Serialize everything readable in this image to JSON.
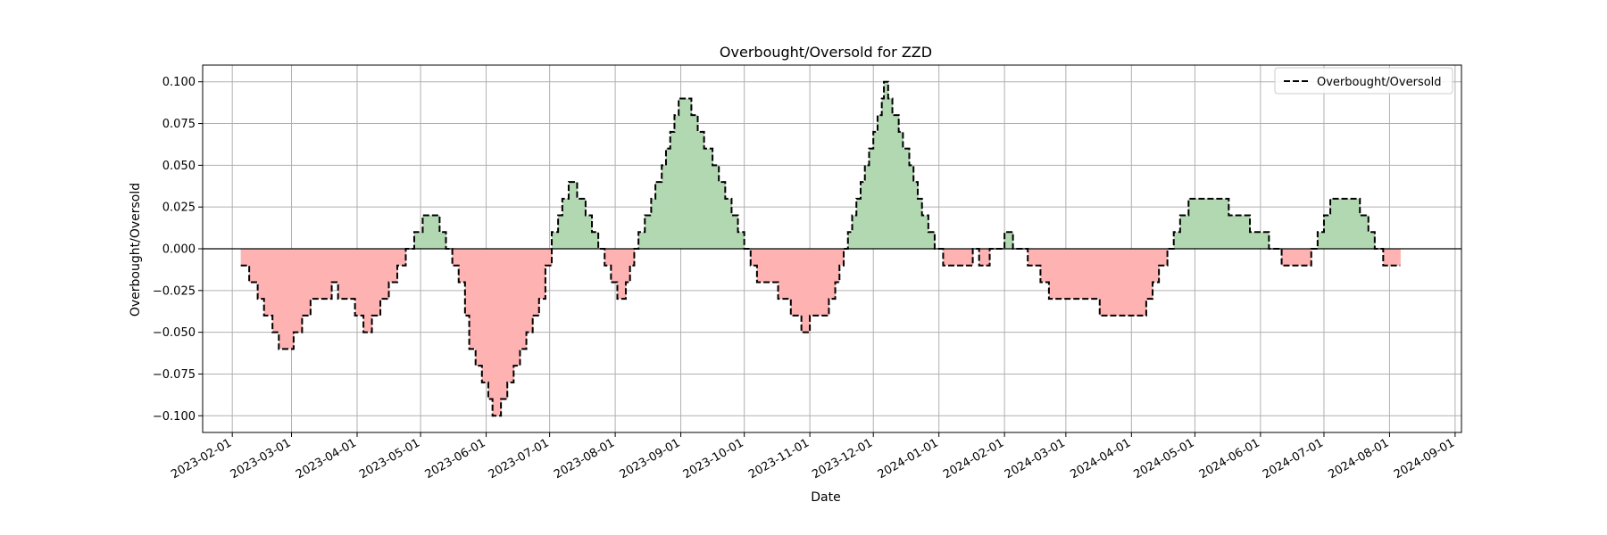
{
  "chart_data": {
    "type": "area",
    "title": "Overbought/Oversold for ZZD",
    "xlabel": "Date",
    "ylabel": "Overbought/Oversold",
    "x_ticks": [
      "2023-02-01",
      "2023-03-01",
      "2023-04-01",
      "2023-05-01",
      "2023-06-01",
      "2023-07-01",
      "2023-08-01",
      "2023-09-01",
      "2023-10-01",
      "2023-11-01",
      "2023-12-01",
      "2024-01-01",
      "2024-02-01",
      "2024-03-01",
      "2024-04-01",
      "2024-05-01",
      "2024-06-01",
      "2024-07-01",
      "2024-08-01",
      "2024-09-01"
    ],
    "y_ticks": [
      "0.100",
      "0.075",
      "0.050",
      "0.025",
      "0.000",
      "−0.025",
      "−0.050",
      "−0.075",
      "−0.100"
    ],
    "y_tick_values": [
      0.1,
      0.075,
      0.05,
      0.025,
      0,
      -0.025,
      -0.05,
      -0.075,
      -0.1
    ],
    "xlim": [
      "2023-01-18",
      "2024-09-04"
    ],
    "ylim": [
      -0.11,
      0.11
    ],
    "grid": true,
    "legend_position": "top-right",
    "colors": {
      "positive_fill": "#b2d8b2",
      "negative_fill": "#ffb2b2",
      "line": "#000000",
      "grid": "#b0b0b0"
    },
    "series": [
      {
        "name": "Overbought/Oversold",
        "style": "dashed",
        "points": [
          [
            "2023-02-05",
            -0.01
          ],
          [
            "2023-02-09",
            -0.02
          ],
          [
            "2023-02-13",
            -0.03
          ],
          [
            "2023-02-16",
            -0.04
          ],
          [
            "2023-02-20",
            -0.05
          ],
          [
            "2023-02-23",
            -0.06
          ],
          [
            "2023-03-02",
            -0.05
          ],
          [
            "2023-03-06",
            -0.04
          ],
          [
            "2023-03-10",
            -0.03
          ],
          [
            "2023-03-20",
            -0.02
          ],
          [
            "2023-03-23",
            -0.03
          ],
          [
            "2023-03-31",
            -0.04
          ],
          [
            "2023-04-04",
            -0.05
          ],
          [
            "2023-04-08",
            -0.04
          ],
          [
            "2023-04-12",
            -0.03
          ],
          [
            "2023-04-16",
            -0.02
          ],
          [
            "2023-04-20",
            -0.01
          ],
          [
            "2023-04-24",
            0.0
          ],
          [
            "2023-04-28",
            0.01
          ],
          [
            "2023-05-02",
            0.02
          ],
          [
            "2023-05-10",
            0.01
          ],
          [
            "2023-05-13",
            0.0
          ],
          [
            "2023-05-16",
            -0.01
          ],
          [
            "2023-05-19",
            -0.02
          ],
          [
            "2023-05-22",
            -0.04
          ],
          [
            "2023-05-24",
            -0.06
          ],
          [
            "2023-05-27",
            -0.07
          ],
          [
            "2023-05-30",
            -0.08
          ],
          [
            "2023-06-02",
            -0.09
          ],
          [
            "2023-06-04",
            -0.1
          ],
          [
            "2023-06-08",
            -0.09
          ],
          [
            "2023-06-11",
            -0.08
          ],
          [
            "2023-06-14",
            -0.07
          ],
          [
            "2023-06-17",
            -0.06
          ],
          [
            "2023-06-20",
            -0.05
          ],
          [
            "2023-06-23",
            -0.04
          ],
          [
            "2023-06-26",
            -0.03
          ],
          [
            "2023-06-29",
            -0.01
          ],
          [
            "2023-07-02",
            0.01
          ],
          [
            "2023-07-05",
            0.02
          ],
          [
            "2023-07-07",
            0.03
          ],
          [
            "2023-07-10",
            0.04
          ],
          [
            "2023-07-14",
            0.03
          ],
          [
            "2023-07-18",
            0.02
          ],
          [
            "2023-07-21",
            0.01
          ],
          [
            "2023-07-24",
            0.0
          ],
          [
            "2023-07-27",
            -0.01
          ],
          [
            "2023-07-30",
            -0.02
          ],
          [
            "2023-08-02",
            -0.03
          ],
          [
            "2023-08-06",
            -0.02
          ],
          [
            "2023-08-08",
            -0.01
          ],
          [
            "2023-08-10",
            0.0
          ],
          [
            "2023-08-12",
            0.01
          ],
          [
            "2023-08-15",
            0.02
          ],
          [
            "2023-08-18",
            0.03
          ],
          [
            "2023-08-20",
            0.04
          ],
          [
            "2023-08-23",
            0.05
          ],
          [
            "2023-08-25",
            0.06
          ],
          [
            "2023-08-27",
            0.07
          ],
          [
            "2023-08-29",
            0.08
          ],
          [
            "2023-08-31",
            0.09
          ],
          [
            "2023-09-06",
            0.08
          ],
          [
            "2023-09-09",
            0.07
          ],
          [
            "2023-09-12",
            0.06
          ],
          [
            "2023-09-16",
            0.05
          ],
          [
            "2023-09-19",
            0.04
          ],
          [
            "2023-09-22",
            0.03
          ],
          [
            "2023-09-25",
            0.02
          ],
          [
            "2023-09-28",
            0.01
          ],
          [
            "2023-10-01",
            0.0
          ],
          [
            "2023-10-04",
            -0.01
          ],
          [
            "2023-10-07",
            -0.02
          ],
          [
            "2023-10-17",
            -0.03
          ],
          [
            "2023-10-23",
            -0.04
          ],
          [
            "2023-10-28",
            -0.05
          ],
          [
            "2023-11-01",
            -0.04
          ],
          [
            "2023-11-10",
            -0.03
          ],
          [
            "2023-11-13",
            -0.02
          ],
          [
            "2023-11-15",
            -0.01
          ],
          [
            "2023-11-17",
            0.0
          ],
          [
            "2023-11-19",
            0.01
          ],
          [
            "2023-11-21",
            0.02
          ],
          [
            "2023-11-23",
            0.03
          ],
          [
            "2023-11-25",
            0.04
          ],
          [
            "2023-11-27",
            0.05
          ],
          [
            "2023-11-29",
            0.06
          ],
          [
            "2023-12-01",
            0.07
          ],
          [
            "2023-12-03",
            0.08
          ],
          [
            "2023-12-05",
            0.09
          ],
          [
            "2023-12-06",
            0.1
          ],
          [
            "2023-12-08",
            0.09
          ],
          [
            "2023-12-10",
            0.08
          ],
          [
            "2023-12-13",
            0.07
          ],
          [
            "2023-12-15",
            0.06
          ],
          [
            "2023-12-18",
            0.05
          ],
          [
            "2023-12-20",
            0.04
          ],
          [
            "2023-12-22",
            0.03
          ],
          [
            "2023-12-24",
            0.02
          ],
          [
            "2023-12-27",
            0.01
          ],
          [
            "2023-12-30",
            0.0
          ],
          [
            "2024-01-03",
            -0.01
          ],
          [
            "2024-01-17",
            0.0
          ],
          [
            "2024-01-20",
            -0.01
          ],
          [
            "2024-01-25",
            0.0
          ],
          [
            "2024-02-01",
            0.01
          ],
          [
            "2024-02-05",
            0.0
          ],
          [
            "2024-02-12",
            -0.01
          ],
          [
            "2024-02-18",
            -0.02
          ],
          [
            "2024-02-22",
            -0.03
          ],
          [
            "2024-03-17",
            -0.04
          ],
          [
            "2024-04-08",
            -0.03
          ],
          [
            "2024-04-11",
            -0.02
          ],
          [
            "2024-04-14",
            -0.01
          ],
          [
            "2024-04-18",
            0.0
          ],
          [
            "2024-04-21",
            0.01
          ],
          [
            "2024-04-24",
            0.02
          ],
          [
            "2024-04-28",
            0.03
          ],
          [
            "2024-05-17",
            0.02
          ],
          [
            "2024-05-27",
            0.01
          ],
          [
            "2024-06-05",
            0.0
          ],
          [
            "2024-06-11",
            -0.01
          ],
          [
            "2024-06-25",
            0.0
          ],
          [
            "2024-06-28",
            0.01
          ],
          [
            "2024-07-01",
            0.02
          ],
          [
            "2024-07-04",
            0.03
          ],
          [
            "2024-07-18",
            0.02
          ],
          [
            "2024-07-22",
            0.01
          ],
          [
            "2024-07-25",
            0.0
          ],
          [
            "2024-07-29",
            -0.01
          ],
          [
            "2024-08-03",
            -0.01
          ]
        ]
      }
    ]
  }
}
